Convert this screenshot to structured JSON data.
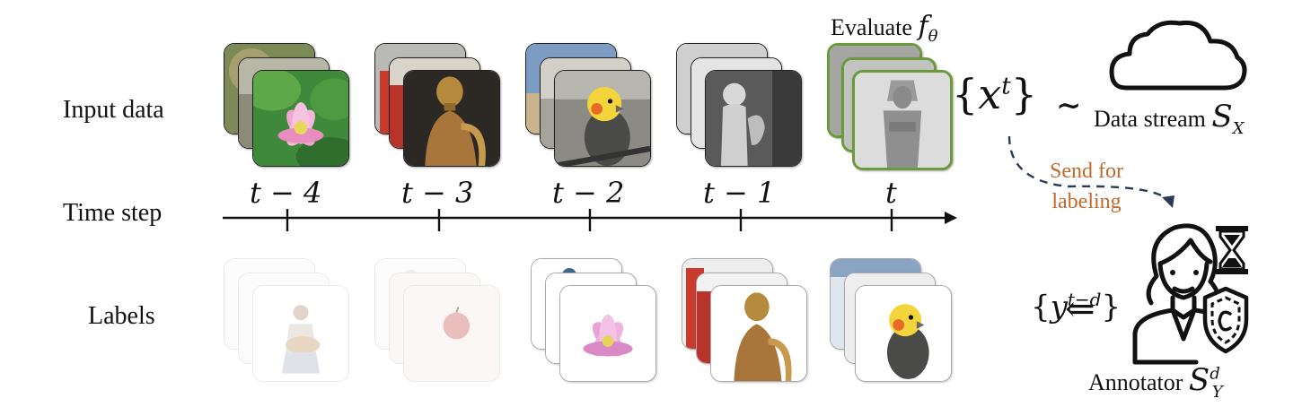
{
  "row_labels": {
    "input": "Input data",
    "time": "Time step",
    "labels": "Labels"
  },
  "time_steps": [
    "t − 4",
    "t − 3",
    "t − 2",
    "t − 1",
    "t"
  ],
  "evaluate": {
    "text": "Evaluate",
    "symbol": "f",
    "sub": "θ"
  },
  "input_set": {
    "open": "{",
    "var": "x",
    "sup": "t",
    "close": "}",
    "tilde": "∼"
  },
  "data_stream": {
    "text": "Data stream",
    "symbol": "S",
    "sub": "X"
  },
  "send_for_labeling": {
    "line1": "Send for",
    "line2": "labeling"
  },
  "label_set": {
    "open": "{",
    "var": "y",
    "sup": "t−d",
    "close": "}",
    "arrow": "⇐"
  },
  "annotator": {
    "text": "Annotator",
    "symbol": "S",
    "sub": "Y",
    "sup": "d"
  },
  "icons": [
    "cloud-icon",
    "annotator-person-icon",
    "hourglass-icon",
    "shield-icon"
  ],
  "colors": {
    "accent_orange": "#c0692b",
    "evaluate_border": "#6a9a3c",
    "dashed_arrow": "#2b3a55"
  }
}
